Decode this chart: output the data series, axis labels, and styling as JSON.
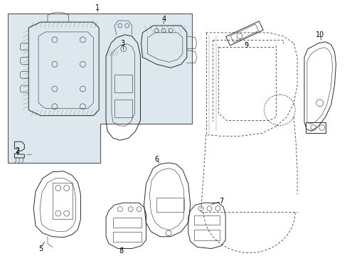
{
  "background_color": "#ffffff",
  "fig_width": 4.89,
  "fig_height": 3.6,
  "dpi": 100,
  "lc": "#2a2a2a",
  "lw": 0.7,
  "tlw": 0.4,
  "fs": 7,
  "box_fill": "#dde8ee",
  "box_edge": "#555555"
}
